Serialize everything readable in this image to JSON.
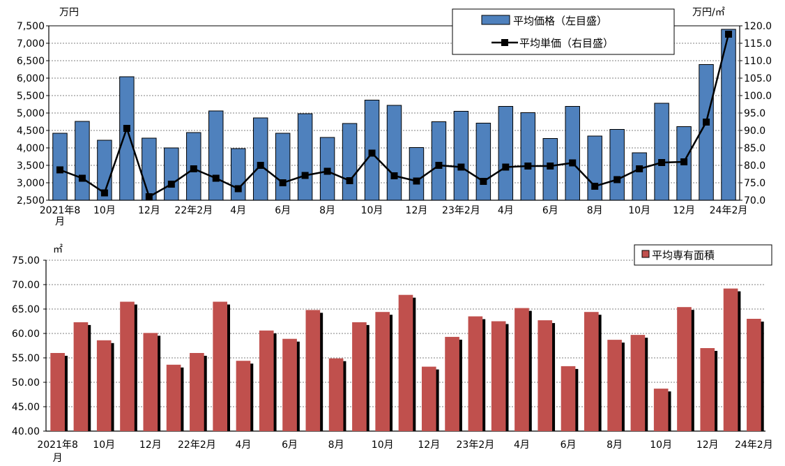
{
  "chart_data": [
    {
      "type": "bar+line",
      "unit_left": "万円",
      "unit_right": "万円/㎡",
      "y_left_lim": [
        2500,
        7500
      ],
      "y_right_lim": [
        70.0,
        120.0
      ],
      "y_left_ticks": [
        "2,500",
        "3,000",
        "3,500",
        "4,000",
        "4,500",
        "5,000",
        "5,500",
        "6,000",
        "6,500",
        "7,000",
        "7,500"
      ],
      "y_right_ticks": [
        "70.0",
        "75.0",
        "80.0",
        "85.0",
        "90.0",
        "95.0",
        "100.0",
        "105.0",
        "110.0",
        "115.0",
        "120.0"
      ],
      "x_tick_labels": [
        {
          "i": 0,
          "lines": [
            "2021年8",
            "月"
          ]
        },
        {
          "i": 2,
          "lines": [
            "10月"
          ]
        },
        {
          "i": 4,
          "lines": [
            "12月"
          ]
        },
        {
          "i": 6,
          "lines": [
            "22年2月"
          ]
        },
        {
          "i": 8,
          "lines": [
            "4月"
          ]
        },
        {
          "i": 10,
          "lines": [
            "6月"
          ]
        },
        {
          "i": 12,
          "lines": [
            "8月"
          ]
        },
        {
          "i": 14,
          "lines": [
            "10月"
          ]
        },
        {
          "i": 16,
          "lines": [
            "12月"
          ]
        },
        {
          "i": 18,
          "lines": [
            "23年2月"
          ]
        },
        {
          "i": 20,
          "lines": [
            "4月"
          ]
        },
        {
          "i": 22,
          "lines": [
            "6月"
          ]
        },
        {
          "i": 24,
          "lines": [
            "8月"
          ]
        },
        {
          "i": 26,
          "lines": [
            "10月"
          ]
        },
        {
          "i": 28,
          "lines": [
            "12月"
          ]
        },
        {
          "i": 30,
          "lines": [
            "24年2月"
          ]
        }
      ],
      "series": [
        {
          "name": "平均価格（左目盛）",
          "type": "bar",
          "axis": "left",
          "color": "#4f81bd",
          "values": [
            4420,
            4760,
            4220,
            6040,
            4280,
            4000,
            4440,
            5060,
            3980,
            4860,
            4420,
            4980,
            4300,
            4700,
            5370,
            5220,
            4010,
            4750,
            5050,
            4710,
            5190,
            5010,
            4270,
            5190,
            4340,
            4530,
            3860,
            5280,
            4610,
            6390,
            7400
          ]
        },
        {
          "name": "平均単価（右目盛）",
          "type": "line",
          "axis": "right",
          "color": "#000000",
          "values": [
            78.7,
            76.3,
            72.1,
            90.6,
            71.0,
            74.6,
            79.0,
            76.3,
            73.3,
            80.0,
            75.0,
            77.1,
            78.3,
            75.6,
            83.5,
            77.0,
            75.5,
            80.0,
            79.5,
            75.4,
            79.5,
            79.8,
            79.8,
            80.7,
            74.0,
            75.9,
            79.0,
            80.8,
            81.0,
            92.4,
            117.6
          ]
        }
      ]
    },
    {
      "type": "bar",
      "unit_left": "㎡",
      "y_left_lim": [
        40.0,
        75.0
      ],
      "y_left_ticks": [
        "40.00",
        "45.00",
        "50.00",
        "55.00",
        "60.00",
        "65.00",
        "70.00",
        "75.00"
      ],
      "x_tick_labels": [
        {
          "i": 0,
          "lines": [
            "2021年8",
            "月"
          ]
        },
        {
          "i": 2,
          "lines": [
            "10月"
          ]
        },
        {
          "i": 4,
          "lines": [
            "12月"
          ]
        },
        {
          "i": 6,
          "lines": [
            "22年2月"
          ]
        },
        {
          "i": 8,
          "lines": [
            "4月"
          ]
        },
        {
          "i": 10,
          "lines": [
            "6月"
          ]
        },
        {
          "i": 12,
          "lines": [
            "8月"
          ]
        },
        {
          "i": 14,
          "lines": [
            "10月"
          ]
        },
        {
          "i": 16,
          "lines": [
            "12月"
          ]
        },
        {
          "i": 18,
          "lines": [
            "23年2月"
          ]
        },
        {
          "i": 20,
          "lines": [
            "4月"
          ]
        },
        {
          "i": 22,
          "lines": [
            "6月"
          ]
        },
        {
          "i": 24,
          "lines": [
            "8月"
          ]
        },
        {
          "i": 26,
          "lines": [
            "10月"
          ]
        },
        {
          "i": 28,
          "lines": [
            "12月"
          ]
        },
        {
          "i": 30,
          "lines": [
            "24年2月"
          ]
        }
      ],
      "series": [
        {
          "name": "平均専有面積",
          "type": "bar",
          "color": "#c0504d",
          "values": [
            56.0,
            62.3,
            58.6,
            66.5,
            60.1,
            53.6,
            56.0,
            66.5,
            54.4,
            60.6,
            58.9,
            64.8,
            54.9,
            62.3,
            64.4,
            67.9,
            53.2,
            59.3,
            63.5,
            62.5,
            65.2,
            62.7,
            53.3,
            64.4,
            58.7,
            59.7,
            48.7,
            65.4,
            57.0,
            69.2,
            63.0
          ]
        }
      ]
    }
  ]
}
